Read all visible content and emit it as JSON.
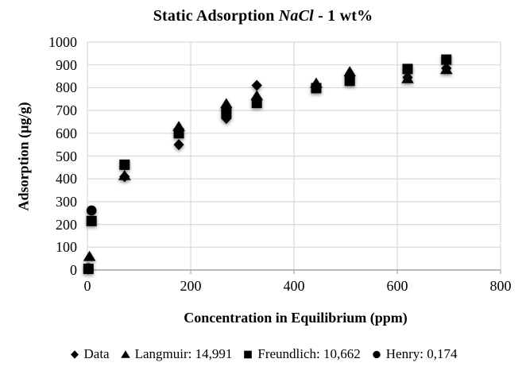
{
  "title": {
    "prefix": "Static Adsorption ",
    "italic": "NaCl",
    "suffix": " - 1 wt%"
  },
  "chart_data": {
    "type": "scatter",
    "title": "Static Adsorption NaCl - 1 wt%",
    "xlabel": "Concentration in Equilibrium (ppm)",
    "ylabel": "Adsorption (µg/g)",
    "xlim": [
      0,
      800
    ],
    "ylim": [
      0,
      1000
    ],
    "x_ticks": [
      0,
      200,
      400,
      600,
      800
    ],
    "y_ticks": [
      0,
      100,
      200,
      300,
      400,
      500,
      600,
      700,
      800,
      900,
      1000
    ],
    "grid": true,
    "legend_position": "bottom",
    "colors": {
      "marker": "#000000",
      "grid": "#d9d9d9",
      "axis": "#a6a6a6",
      "text": "#000000"
    },
    "series": [
      {
        "name": "Data",
        "marker": "diamond",
        "points": [
          [
            2,
            5
          ],
          [
            72,
            410
          ],
          [
            177,
            550
          ],
          [
            269,
            665
          ],
          [
            328,
            810
          ],
          [
            443,
            810
          ],
          [
            508,
            850
          ],
          [
            620,
            845
          ],
          [
            695,
            885
          ]
        ]
      },
      {
        "name": "Langmuir: 14,991",
        "marker": "triangle",
        "points": [
          [
            4,
            60
          ],
          [
            72,
            415
          ],
          [
            177,
            630
          ],
          [
            269,
            730
          ],
          [
            328,
            765
          ],
          [
            443,
            820
          ],
          [
            508,
            870
          ],
          [
            620,
            840
          ],
          [
            695,
            880
          ]
        ]
      },
      {
        "name": "Freundlich: 10,662",
        "marker": "square",
        "points": [
          [
            2,
            5
          ],
          [
            8,
            215
          ],
          [
            72,
            462
          ],
          [
            177,
            600
          ],
          [
            269,
            688
          ],
          [
            328,
            733
          ],
          [
            443,
            798
          ],
          [
            508,
            830
          ],
          [
            620,
            882
          ],
          [
            695,
            923
          ]
        ]
      },
      {
        "name": "Henry: 0,174",
        "marker": "circle",
        "points": [
          [
            2,
            8
          ],
          [
            8,
            261
          ]
        ]
      }
    ]
  }
}
